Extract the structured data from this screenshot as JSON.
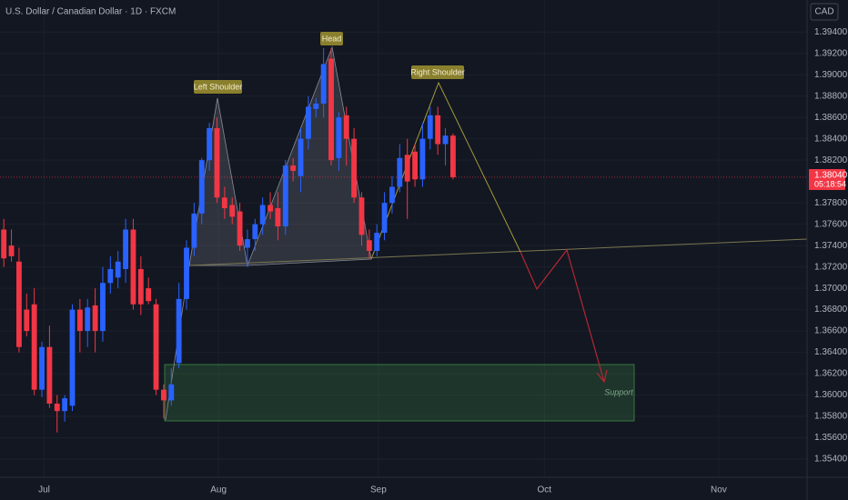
{
  "chart_data": {
    "type": "candlestick",
    "title": "U.S. Dollar / Canadian Dollar · 1D · FXCM",
    "currency": "CAD",
    "x": [
      0,
      1,
      2,
      3,
      4,
      5,
      6,
      7,
      8,
      9,
      10,
      11,
      12,
      13,
      14,
      15,
      16,
      17,
      18,
      19,
      20,
      21,
      22,
      23,
      24,
      25,
      26,
      27,
      28,
      29,
      30,
      31,
      32,
      33,
      34,
      35,
      36,
      37,
      38,
      39,
      40,
      41,
      42,
      43,
      44,
      45,
      46,
      47,
      48,
      49,
      50,
      51,
      52,
      53,
      54,
      55,
      56,
      57,
      58,
      59
    ],
    "open": [
      1.3755,
      1.374,
      1.3725,
      1.368,
      1.3685,
      1.3605,
      1.3645,
      1.3592,
      1.3585,
      1.359,
      1.368,
      1.366,
      1.3684,
      1.366,
      1.3705,
      1.371,
      1.3718,
      1.3755,
      1.3718,
      1.37,
      1.3685,
      1.3605,
      1.3595,
      1.363,
      1.369,
      1.3738,
      1.377,
      1.382,
      1.385,
      1.3785,
      1.3778,
      1.3772,
      1.3738,
      1.3746,
      1.376,
      1.3778,
      1.3775,
      1.3758,
      1.3815,
      1.3805,
      1.384,
      1.3868,
      1.3873,
      1.3915,
      1.3822,
      1.3862,
      1.384,
      1.3785,
      1.3745,
      1.3735,
      1.3752,
      1.378,
      1.3795,
      1.3825,
      1.3828,
      1.3802,
      1.384,
      1.3862,
      1.3835,
      1.3843
    ],
    "high": [
      1.3765,
      1.3755,
      1.3738,
      1.3695,
      1.37,
      1.365,
      1.3665,
      1.36,
      1.36,
      1.3685,
      1.369,
      1.369,
      1.37,
      1.372,
      1.373,
      1.3735,
      1.3765,
      1.3765,
      1.373,
      1.371,
      1.369,
      1.361,
      1.3625,
      1.3705,
      1.3745,
      1.378,
      1.3822,
      1.3855,
      1.386,
      1.3795,
      1.3785,
      1.378,
      1.3755,
      1.3765,
      1.3785,
      1.379,
      1.379,
      1.382,
      1.3822,
      1.385,
      1.388,
      1.3878,
      1.3925,
      1.3925,
      1.3865,
      1.387,
      1.385,
      1.379,
      1.3755,
      1.376,
      1.379,
      1.3805,
      1.3835,
      1.384,
      1.3835,
      1.3855,
      1.387,
      1.387,
      1.385,
      1.3845
    ],
    "low": [
      1.372,
      1.3725,
      1.364,
      1.3655,
      1.36,
      1.3598,
      1.3588,
      1.3565,
      1.3575,
      1.3585,
      1.364,
      1.3645,
      1.364,
      1.365,
      1.3695,
      1.37,
      1.3705,
      1.368,
      1.3675,
      1.3685,
      1.36,
      1.3578,
      1.359,
      1.3625,
      1.368,
      1.373,
      1.376,
      1.381,
      1.378,
      1.3765,
      1.376,
      1.3735,
      1.372,
      1.3735,
      1.375,
      1.3765,
      1.3745,
      1.375,
      1.38,
      1.379,
      1.383,
      1.386,
      1.386,
      1.3815,
      1.381,
      1.3815,
      1.378,
      1.374,
      1.3728,
      1.373,
      1.3745,
      1.377,
      1.379,
      1.3765,
      1.3795,
      1.3795,
      1.383,
      1.3825,
      1.3815,
      1.3802
    ],
    "close": [
      1.3728,
      1.373,
      1.3645,
      1.366,
      1.3605,
      1.3645,
      1.3592,
      1.3585,
      1.3597,
      1.368,
      1.366,
      1.3682,
      1.366,
      1.3705,
      1.3718,
      1.3725,
      1.3755,
      1.3685,
      1.3685,
      1.3688,
      1.3605,
      1.3595,
      1.361,
      1.369,
      1.3738,
      1.377,
      1.382,
      1.385,
      1.3785,
      1.3775,
      1.3767,
      1.374,
      1.3746,
      1.376,
      1.3778,
      1.3772,
      1.3758,
      1.3815,
      1.381,
      1.384,
      1.387,
      1.3873,
      1.391,
      1.382,
      1.386,
      1.384,
      1.3785,
      1.375,
      1.3735,
      1.3752,
      1.378,
      1.3795,
      1.3822,
      1.38,
      1.3802,
      1.384,
      1.3862,
      1.3835,
      1.3843,
      1.3804
    ],
    "up_color": "#2962ff",
    "down_color": "#f23645",
    "xlim": [
      -0.5,
      105.5
    ],
    "ylim": [
      1.3523,
      1.397
    ],
    "xticks": [
      {
        "value": 5.3,
        "label": "Jul"
      },
      {
        "value": 28.2,
        "label": "Aug"
      },
      {
        "value": 49.2,
        "label": "Sep"
      },
      {
        "value": 71.0,
        "label": "Oct"
      },
      {
        "value": 93.9,
        "label": "Nov"
      }
    ],
    "yticks": [
      {
        "value": 1.394,
        "label": "1.39400"
      },
      {
        "value": 1.392,
        "label": "1.39200"
      },
      {
        "value": 1.39,
        "label": "1.39000"
      },
      {
        "value": 1.388,
        "label": "1.38800"
      },
      {
        "value": 1.386,
        "label": "1.38600"
      },
      {
        "value": 1.384,
        "label": "1.38400"
      },
      {
        "value": 1.382,
        "label": "1.38200"
      },
      {
        "value": 1.378,
        "label": "1.37800"
      },
      {
        "value": 1.376,
        "label": "1.37600"
      },
      {
        "value": 1.374,
        "label": "1.37400"
      },
      {
        "value": 1.372,
        "label": "1.37200"
      },
      {
        "value": 1.37,
        "label": "1.37000"
      },
      {
        "value": 1.368,
        "label": "1.36800"
      },
      {
        "value": 1.366,
        "label": "1.36600"
      },
      {
        "value": 1.364,
        "label": "1.36400"
      },
      {
        "value": 1.362,
        "label": "1.36200"
      },
      {
        "value": 1.36,
        "label": "1.36000"
      },
      {
        "value": 1.358,
        "label": "1.35800"
      },
      {
        "value": 1.356,
        "label": "1.35600"
      },
      {
        "value": 1.354,
        "label": "1.35400"
      }
    ],
    "grid": true,
    "last_price": {
      "value": 1.3804,
      "label": "1.38040"
    },
    "countdown": "05:18:54",
    "annotations": [
      "Left Shoulder",
      "Head",
      "Right Shoulder",
      "Support"
    ]
  }
}
